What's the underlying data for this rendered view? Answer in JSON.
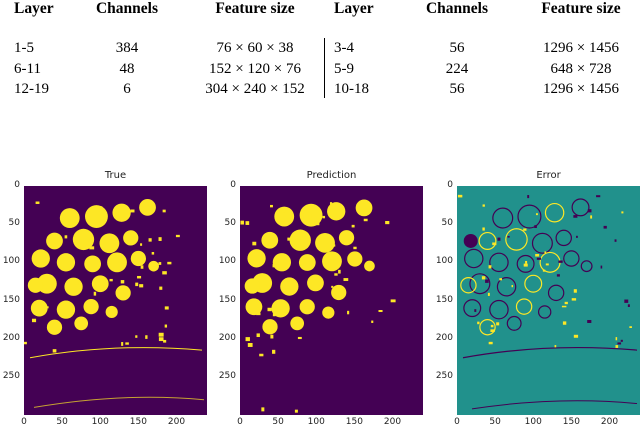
{
  "table": {
    "left": {
      "headers": [
        "Layer",
        "Channels",
        "Feature size"
      ],
      "rows": [
        [
          "1-5",
          "384",
          "76 × 60 × 38"
        ],
        [
          "6-11",
          "48",
          "152 × 120 × 76"
        ],
        [
          "12-19",
          "6",
          "304 × 240 × 152"
        ]
      ]
    },
    "right": {
      "headers": [
        "Layer",
        "Channels",
        "Feature size"
      ],
      "rows": [
        [
          "3-4",
          "56",
          "1296 × 1456"
        ],
        [
          "5-9",
          "224",
          "648 × 728"
        ],
        [
          "10-18",
          "56",
          "1296 × 1456"
        ]
      ]
    }
  },
  "figure": {
    "panels": [
      {
        "title": "True",
        "colors": {
          "bg": "#440154",
          "fg": "#fde725"
        }
      },
      {
        "title": "Prediction",
        "colors": {
          "bg": "#440154",
          "fg": "#fde725"
        }
      },
      {
        "title": "Error",
        "colors": {
          "bg": "#21918c",
          "fg": "#fde725",
          "neg": "#440154"
        }
      }
    ],
    "y_ticks": [
      "0",
      "50",
      "100",
      "150",
      "200",
      "250"
    ],
    "x_ticks": [
      "0",
      "50",
      "100",
      "150",
      "200"
    ],
    "y_tick_values": [
      0,
      50,
      100,
      150,
      200,
      250
    ],
    "x_tick_values": [
      0,
      50,
      100,
      150,
      200
    ],
    "image_width": 240,
    "image_height": 300
  }
}
